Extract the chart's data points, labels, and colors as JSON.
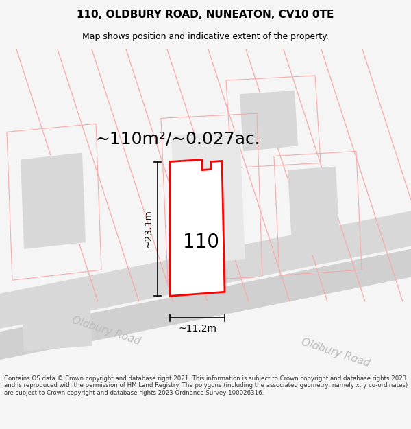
{
  "title": "110, OLDBURY ROAD, NUNEATON, CV10 0TE",
  "subtitle": "Map shows position and indicative extent of the property.",
  "area_label": "~110m²/~0.027ac.",
  "number_label": "110",
  "dim_width": "~11.2m",
  "dim_height": "~23.1m",
  "road_label1": "Oldbury Road",
  "road_label2": "Oldbury Road",
  "footer_text": "Contains OS data © Crown copyright and database right 2021. This information is subject to Crown copyright and database rights 2023 and is reproduced with the permission of HM Land Registry. The polygons (including the associated geometry, namely x, y co-ordinates) are subject to Crown copyright and database rights 2023 Ordnance Survey 100026316.",
  "bg_color": "#f5f5f5",
  "map_bg": "#ffffff",
  "road_color": "#cccccc",
  "plot_outline_color": "#ff0000",
  "plot_fill_color": "#ffffff",
  "neighbor_fill": "#e0e0e0",
  "neighbor_outline": "#ffaaaa",
  "dim_line_color": "#000000",
  "text_color": "#000000",
  "road_text_color": "#bbbbbb"
}
